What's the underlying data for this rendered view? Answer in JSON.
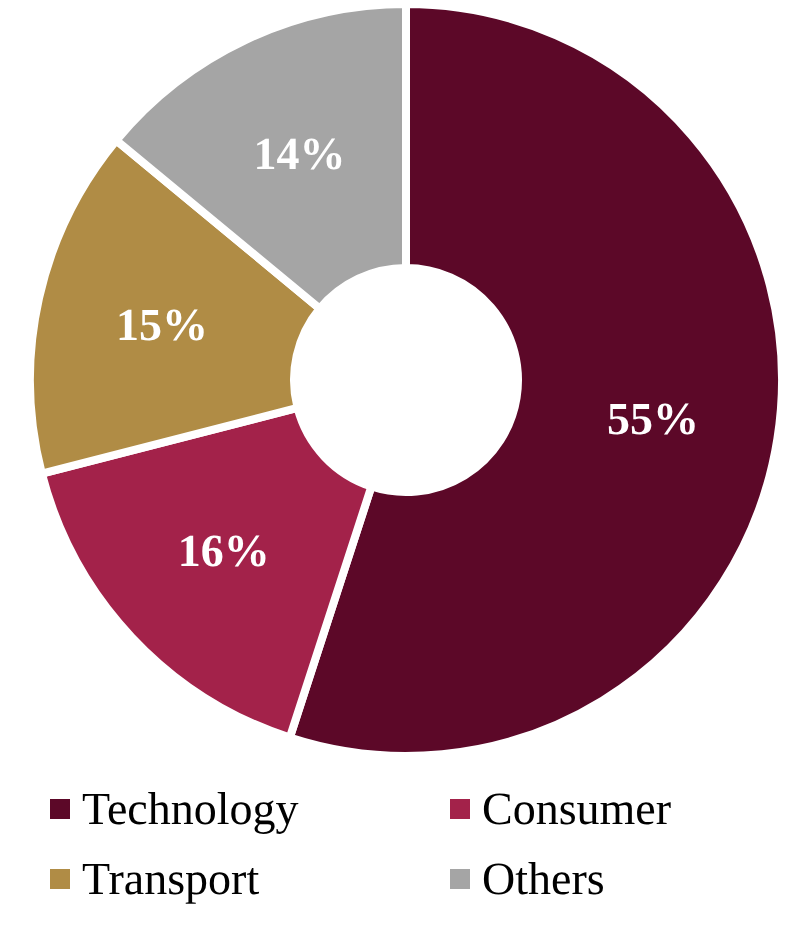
{
  "chart_data": {
    "type": "donut",
    "categories": [
      "Technology",
      "Consumer",
      "Transport",
      "Others"
    ],
    "values": [
      55,
      16,
      15,
      14
    ],
    "colors": [
      "#5c0828",
      "#a3224a",
      "#b08c45",
      "#a5a5a5"
    ],
    "value_labels": [
      "55%",
      "16%",
      "15%",
      "14%"
    ],
    "legend": "bottom"
  }
}
